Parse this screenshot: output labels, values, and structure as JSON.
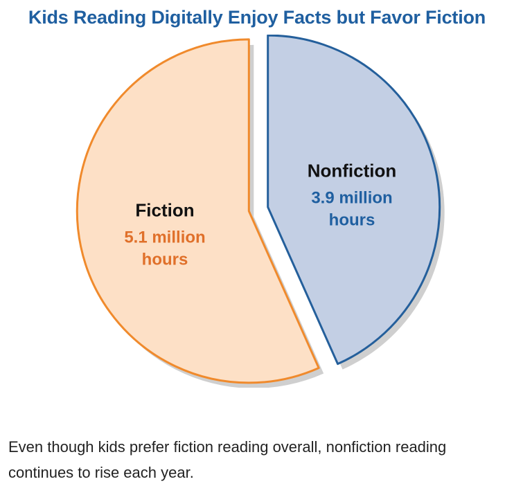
{
  "chart_data": {
    "type": "pie",
    "title": "Kids Reading Digitally Enjoy Facts but Favor Fiction",
    "slices": [
      {
        "name": "Nonfiction",
        "value": 3.9,
        "value_label_line1": "3.9 million",
        "value_label_line2": "hours",
        "fill": "#c3cfe4",
        "stroke": "#245f9b",
        "label_color": "#1f5fa0"
      },
      {
        "name": "Fiction",
        "value": 5.1,
        "value_label_line1": "5.1 million",
        "value_label_line2": "hours",
        "fill": "#fde0c6",
        "stroke": "#f08a2c",
        "label_color": "#e0702a"
      }
    ],
    "units": "million hours"
  },
  "caption": "Even though kids prefer fiction reading overall, nonfiction reading continues to rise each year."
}
